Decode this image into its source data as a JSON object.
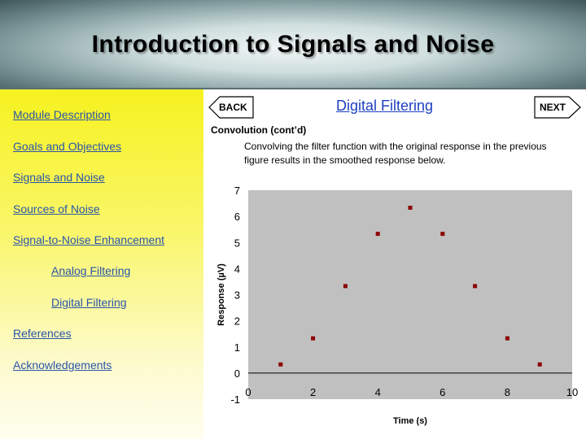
{
  "header": {
    "title": "Introduction to Signals and Noise"
  },
  "sidebar": {
    "items": [
      {
        "label": "Module Description"
      },
      {
        "label": "Goals and Objectives"
      },
      {
        "label": "Signals and Noise"
      },
      {
        "label": "Sources of Noise"
      },
      {
        "label": "Signal-to-Noise Enhancement"
      },
      {
        "label": "Analog Filtering"
      },
      {
        "label": "Digital Filtering"
      },
      {
        "label": "References"
      },
      {
        "label": "Acknowledgements"
      }
    ]
  },
  "nav": {
    "back_label": "BACK",
    "next_label": "NEXT"
  },
  "main": {
    "section_title": "Digital Filtering",
    "subheading": "Convolution (cont’d)",
    "description": "Convolving the filter function with the original response in the previous figure results in the smoothed response below."
  },
  "colors": {
    "marker": "#8b0000",
    "plot_area": "#c0c0c0",
    "sidebar": "#f6f21f",
    "title_link": "#1f40c0"
  },
  "chart_data": {
    "type": "scatter",
    "title": "",
    "xlabel": "Time (s)",
    "ylabel": "Response (µV)",
    "xlim": [
      0,
      10
    ],
    "ylim": [
      -1,
      7
    ],
    "xticks": [
      0,
      2,
      4,
      6,
      8,
      10
    ],
    "yticks": [
      -1,
      0,
      1,
      2,
      3,
      4,
      5,
      6,
      7
    ],
    "grid": false,
    "x": [
      1,
      2,
      3,
      4,
      5,
      6,
      7,
      8,
      9
    ],
    "y": [
      0.33,
      1.33,
      3.33,
      5.33,
      6.33,
      5.33,
      3.33,
      1.33,
      0.33
    ]
  }
}
